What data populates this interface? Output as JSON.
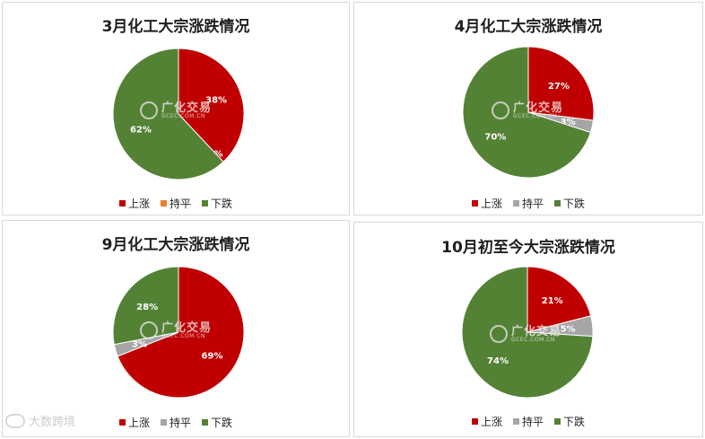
{
  "colors": {
    "up": "#c00000",
    "flat_orange": "#ed7d31",
    "flat_gray": "#a5a5a5",
    "down": "#548235"
  },
  "watermark": {
    "brand": "广化交易",
    "url": "GCEC.COM.CN"
  },
  "corner_watermark": {
    "text": "大数跨境"
  },
  "chart_data": [
    {
      "type": "pie",
      "title": "3月化工大宗涨跌情况",
      "categories": [
        "上涨",
        "持平",
        "下跌"
      ],
      "values": [
        38,
        0,
        62
      ],
      "labels": [
        "38%",
        "0%",
        "62%"
      ],
      "colors": [
        "#c00000",
        "#ed7d31",
        "#548235"
      ],
      "legend_position": "bottom"
    },
    {
      "type": "pie",
      "title": "4月化工大宗涨跌情况",
      "categories": [
        "上涨",
        "持平",
        "下跌"
      ],
      "values": [
        27,
        3,
        70
      ],
      "labels": [
        "27%",
        "3%",
        "70%"
      ],
      "colors": [
        "#c00000",
        "#a5a5a5",
        "#548235"
      ],
      "legend_position": "bottom"
    },
    {
      "type": "pie",
      "title": "9月化工大宗涨跌情况",
      "categories": [
        "上涨",
        "持平",
        "下跌"
      ],
      "values": [
        69,
        3,
        28
      ],
      "labels": [
        "69%",
        "3%",
        "28%"
      ],
      "colors": [
        "#c00000",
        "#a5a5a5",
        "#548235"
      ],
      "legend_position": "bottom"
    },
    {
      "type": "pie",
      "title": "10月初至今大宗涨跌情况",
      "categories": [
        "上涨",
        "持平",
        "下跌"
      ],
      "values": [
        21,
        5,
        74
      ],
      "labels": [
        "21%",
        "5%",
        "74%"
      ],
      "colors": [
        "#c00000",
        "#a5a5a5",
        "#548235"
      ],
      "legend_position": "bottom"
    }
  ]
}
